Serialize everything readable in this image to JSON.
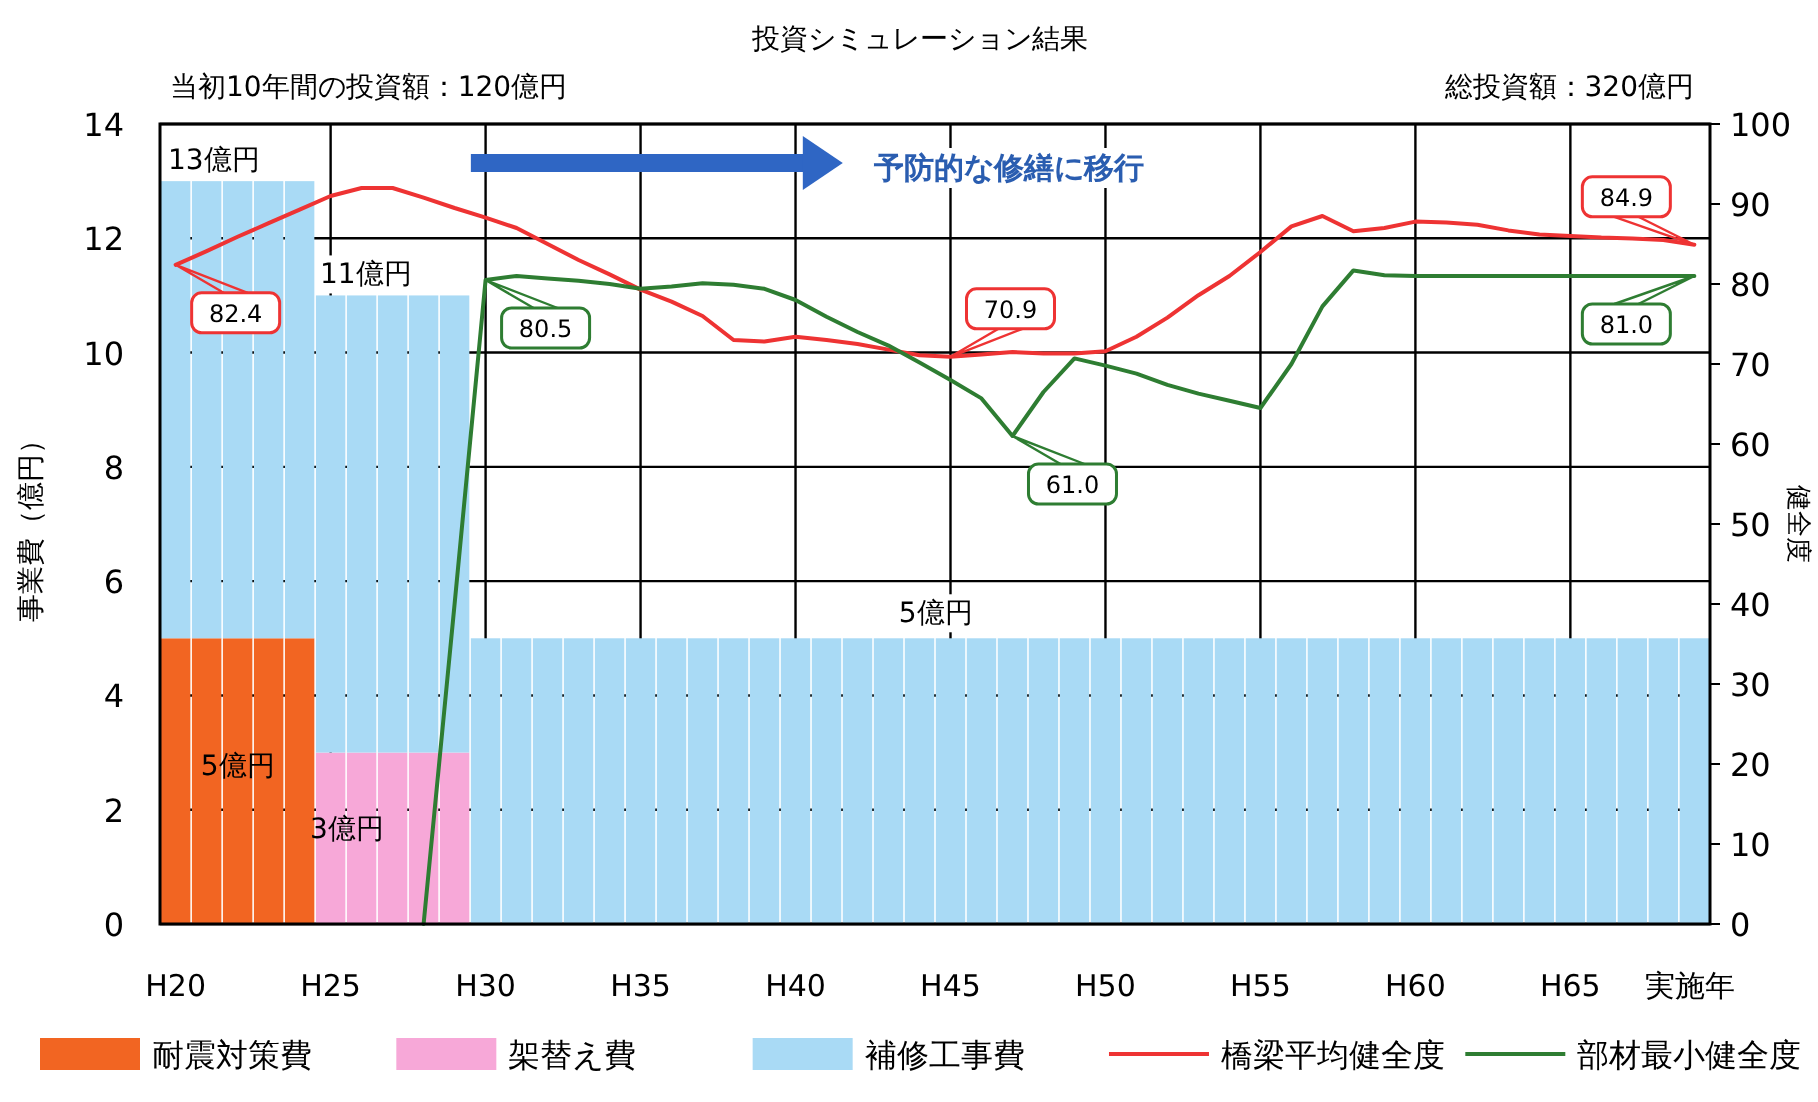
{
  "chart_data": {
    "type": "bar",
    "title": "投資シミュレーション結果",
    "ylabel": "事業費（億円）",
    "y2label": "健全度",
    "xlabel": "実施年",
    "stacked": true,
    "categories": [
      "H20",
      null,
      null,
      null,
      null,
      "H25",
      null,
      null,
      null,
      null,
      "H30",
      null,
      null,
      null,
      null,
      "H35",
      null,
      null,
      null,
      null,
      "H40",
      null,
      null,
      null,
      null,
      "H45",
      null,
      null,
      null,
      null,
      "H50",
      null,
      null,
      null,
      null,
      "H55",
      null,
      null,
      null,
      null,
      "H60",
      null,
      null,
      null,
      null,
      "H65",
      null,
      null,
      null,
      null
    ],
    "series": [
      {
        "name": "耐震対策費",
        "color": "#f26522",
        "values": [
          5,
          5,
          5,
          5,
          5,
          null,
          null,
          null,
          null,
          null,
          null,
          null,
          null,
          null,
          null,
          null,
          null,
          null,
          null,
          null,
          null,
          null,
          null,
          null,
          null,
          null,
          null,
          null,
          null,
          null,
          null,
          null,
          null,
          null,
          null,
          null,
          null,
          null,
          null,
          null,
          null,
          null,
          null,
          null,
          null,
          null,
          null,
          null,
          null,
          null
        ]
      },
      {
        "name": "架替え費",
        "color": "#f7a8d8",
        "values": [
          null,
          null,
          null,
          null,
          null,
          3,
          3,
          3,
          3,
          3,
          null,
          null,
          null,
          null,
          null,
          null,
          null,
          null,
          null,
          null,
          null,
          null,
          null,
          null,
          null,
          null,
          null,
          null,
          null,
          null,
          null,
          null,
          null,
          null,
          null,
          null,
          null,
          null,
          null,
          null,
          null,
          null,
          null,
          null,
          null,
          null,
          null,
          null,
          null,
          null
        ]
      },
      {
        "name": "補修工事費",
        "color": "#a9daf5",
        "values": [
          8,
          8,
          8,
          8,
          8,
          8,
          8,
          8,
          8,
          8,
          5,
          5,
          5,
          5,
          5,
          5,
          5,
          5,
          5,
          5,
          5,
          5,
          5,
          5,
          5,
          5,
          5,
          5,
          5,
          5,
          5,
          5,
          5,
          5,
          5,
          5,
          5,
          5,
          5,
          5,
          5,
          5,
          5,
          5,
          5,
          5,
          5,
          5,
          5,
          5
        ]
      },
      {
        "name": "橋梁平均健全度",
        "type": "line",
        "axis": "y2",
        "color": "#ee3333",
        "values": [
          82.4,
          84.1,
          85.9,
          87.6,
          89.3,
          91,
          92,
          92,
          90.8,
          89.5,
          88.3,
          87,
          85,
          83,
          81.2,
          79.3,
          77.8,
          76,
          73,
          72.8,
          73.4,
          73,
          72.5,
          71.8,
          71.1,
          70.9,
          71.2,
          71.5,
          71.3,
          71.3,
          71.6,
          73.4,
          75.8,
          78.6,
          81,
          84,
          87.2,
          88.5,
          86.6,
          87,
          87.8,
          87.7,
          87.4,
          86.7,
          86.2,
          86,
          85.8,
          85.7,
          85.5,
          84.9
        ],
        "value_labels": [
          "82.4",
          null,
          null,
          null,
          null,
          null,
          null,
          null,
          null,
          null,
          null,
          null,
          null,
          null,
          null,
          null,
          null,
          null,
          null,
          null,
          null,
          null,
          null,
          null,
          null,
          "70.9",
          null,
          null,
          null,
          null,
          null,
          null,
          null,
          null,
          null,
          null,
          null,
          null,
          null,
          null,
          null,
          null,
          null,
          null,
          null,
          null,
          null,
          null,
          null,
          "84.9"
        ]
      },
      {
        "name": "部材最小健全度",
        "type": "line",
        "axis": "y2",
        "color": "#2e7d32",
        "values": [
          null,
          null,
          null,
          null,
          null,
          null,
          null,
          null,
          0,
          40,
          80.5,
          81,
          80.7,
          80.4,
          80,
          79.4,
          79.7,
          80.1,
          79.9,
          79.4,
          78,
          75.9,
          74,
          72.3,
          70.2,
          68,
          65.7,
          61.0,
          66.5,
          70.7,
          69.8,
          68.8,
          67.4,
          66.3,
          65.4,
          64.5,
          70,
          77.2,
          81.7,
          81.1,
          81,
          81,
          81,
          81,
          81,
          81,
          81,
          81,
          81,
          81.0
        ],
        "value_labels": [
          null,
          null,
          null,
          null,
          null,
          null,
          null,
          null,
          null,
          null,
          "80.5",
          null,
          null,
          null,
          null,
          null,
          null,
          null,
          null,
          null,
          null,
          null,
          null,
          null,
          null,
          null,
          null,
          "61.0",
          null,
          null,
          null,
          null,
          null,
          null,
          null,
          null,
          null,
          null,
          null,
          null,
          null,
          null,
          null,
          null,
          null,
          null,
          null,
          null,
          null,
          "81.0"
        ]
      }
    ],
    "ylim": [
      0,
      14
    ],
    "yticks": [
      0,
      2,
      4,
      6,
      8,
      10,
      12,
      14
    ],
    "y2lim": [
      0,
      100
    ],
    "y2ticks": [
      0,
      10,
      20,
      30,
      40,
      50,
      60,
      70,
      80,
      90,
      100
    ],
    "grid": true,
    "legend": "bottom",
    "annotations": [
      "当初10年間の投資額：120億円",
      "総投資額：320億円",
      "予防的な修繕に移行",
      "13億円",
      "11億円",
      "5億円",
      "5億円",
      "3億円"
    ]
  }
}
